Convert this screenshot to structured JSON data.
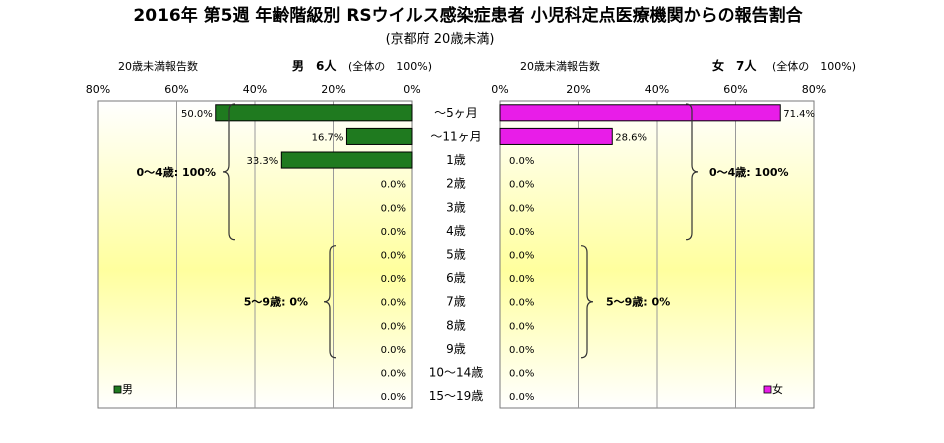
{
  "title": "2016年 第5週 年齢階級別 RSウイルス感染症患者 小児科定点医療機関からの報告割合",
  "subtitle": "(京都府 20歳未満)",
  "colors": {
    "male": "#1f7a1f",
    "male_edge": "#000000",
    "female": "#e81de8",
    "female_edge": "#000000",
    "plot_top": "#ffffff",
    "plot_mid": "#ffff9e",
    "grid": "#9a9a9a"
  },
  "chart_data": {
    "type": "bar",
    "orientation": "horizontal-population-pyramid",
    "categories": [
      "～5ヶ月",
      "～11ヶ月",
      "1歳",
      "2歳",
      "3歳",
      "4歳",
      "5歳",
      "6歳",
      "7歳",
      "8歳",
      "9歳",
      "10～14歳",
      "15～19歳"
    ],
    "xlim": [
      0,
      80
    ],
    "ticks": [
      "80%",
      "60%",
      "40%",
      "20%",
      "0%"
    ],
    "ticks_right": [
      "0%",
      "20%",
      "40%",
      "60%",
      "80%"
    ],
    "grid": true,
    "male": {
      "header_left": "20歳未満報告数",
      "header_mid": "男　6人",
      "header_right": "(全体の　100%)",
      "legend": "男",
      "values": [
        50.0,
        16.7,
        33.3,
        0,
        0,
        0,
        0,
        0,
        0,
        0,
        0,
        0,
        0
      ],
      "labels": [
        "50.0%",
        "16.7%",
        "33.3%",
        "0.0%",
        "0.0%",
        "0.0%",
        "0.0%",
        "0.0%",
        "0.0%",
        "0.0%",
        "0.0%",
        "0.0%",
        "0.0%"
      ],
      "brace1": "0～4歳: 100%",
      "brace2": "5～9歳: 0%"
    },
    "female": {
      "header_left": "20歳未満報告数",
      "header_mid": "女　7人",
      "header_right": "(全体の　100%)",
      "legend": "女",
      "values": [
        71.4,
        28.6,
        0,
        0,
        0,
        0,
        0,
        0,
        0,
        0,
        0,
        0,
        0
      ],
      "labels": [
        "71.4%",
        "28.6%",
        "0.0%",
        "0.0%",
        "0.0%",
        "0.0%",
        "0.0%",
        "0.0%",
        "0.0%",
        "0.0%",
        "0.0%",
        "0.0%",
        "0.0%"
      ],
      "brace1": "0～4歳: 100%",
      "brace2": "5～9歳: 0%"
    }
  }
}
